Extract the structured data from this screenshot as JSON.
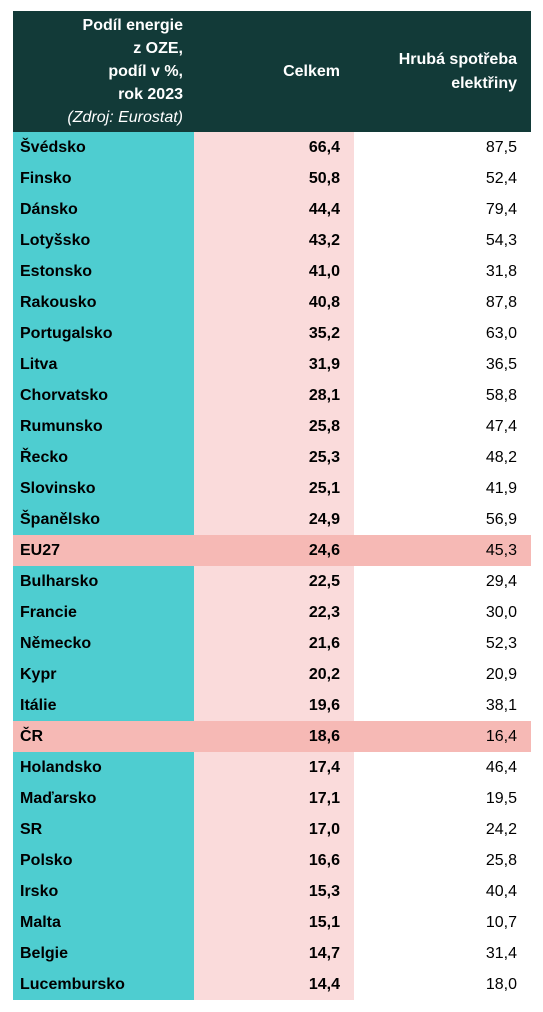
{
  "header": {
    "col1_lines": [
      "Podíl energie",
      "z OZE,",
      "podíl v %,",
      "rok 2023"
    ],
    "col1_source": "(Zdroj: Eurostat)",
    "col2": "Celkem",
    "col3_lines": [
      "Hrubá spotřeba",
      "elektřiny"
    ]
  },
  "colors": {
    "header_bg": "#123a38",
    "country_bg": "#4ecdd0",
    "total_bg": "#fadbdb",
    "highlight_bg": "#f6b9b5"
  },
  "rows": [
    {
      "country": "Švédsko",
      "total": "66,4",
      "electricity": "87,5"
    },
    {
      "country": "Finsko",
      "total": "50,8",
      "electricity": "52,4"
    },
    {
      "country": "Dánsko",
      "total": "44,4",
      "electricity": "79,4"
    },
    {
      "country": "Lotyšsko",
      "total": "43,2",
      "electricity": "54,3"
    },
    {
      "country": "Estonsko",
      "total": "41,0",
      "electricity": "31,8"
    },
    {
      "country": "Rakousko",
      "total": "40,8",
      "electricity": "87,8"
    },
    {
      "country": "Portugalsko",
      "total": "35,2",
      "electricity": "63,0"
    },
    {
      "country": "Litva",
      "total": "31,9",
      "electricity": "36,5"
    },
    {
      "country": "Chorvatsko",
      "total": "28,1",
      "electricity": "58,8"
    },
    {
      "country": "Rumunsko",
      "total": "25,8",
      "electricity": "47,4"
    },
    {
      "country": "Řecko",
      "total": "25,3",
      "electricity": "48,2"
    },
    {
      "country": "Slovinsko",
      "total": "25,1",
      "electricity": "41,9"
    },
    {
      "country": "Španělsko",
      "total": "24,9",
      "electricity": "56,9"
    },
    {
      "country": "EU27",
      "total": "24,6",
      "electricity": "45,3",
      "highlight": true
    },
    {
      "country": "Bulharsko",
      "total": "22,5",
      "electricity": "29,4"
    },
    {
      "country": "Francie",
      "total": "22,3",
      "electricity": "30,0"
    },
    {
      "country": "Německo",
      "total": "21,6",
      "electricity": "52,3"
    },
    {
      "country": "Kypr",
      "total": "20,2",
      "electricity": "20,9"
    },
    {
      "country": "Itálie",
      "total": "19,6",
      "electricity": "38,1"
    },
    {
      "country": "ČR",
      "total": "18,6",
      "electricity": "16,4",
      "highlight": true
    },
    {
      "country": "Holandsko",
      "total": "17,4",
      "electricity": "46,4"
    },
    {
      "country": "Maďarsko",
      "total": "17,1",
      "electricity": "19,5"
    },
    {
      "country": "SR",
      "total": "17,0",
      "electricity": "24,2"
    },
    {
      "country": "Polsko",
      "total": "16,6",
      "electricity": "25,8"
    },
    {
      "country": "Irsko",
      "total": "15,3",
      "electricity": "40,4"
    },
    {
      "country": "Malta",
      "total": "15,1",
      "electricity": "10,7"
    },
    {
      "country": "Belgie",
      "total": "14,7",
      "electricity": "31,4"
    },
    {
      "country": "Lucembursko",
      "total": "14,4",
      "electricity": "18,0"
    }
  ]
}
